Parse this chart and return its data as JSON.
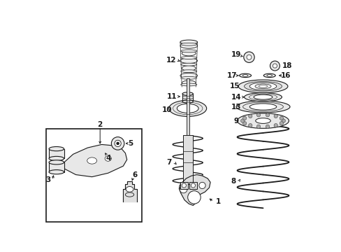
{
  "bg_color": "#ffffff",
  "line_color": "#1a1a1a",
  "fig_width": 4.89,
  "fig_height": 3.6,
  "dpi": 100,
  "label_fs": 7.5,
  "lw_main": 0.8
}
